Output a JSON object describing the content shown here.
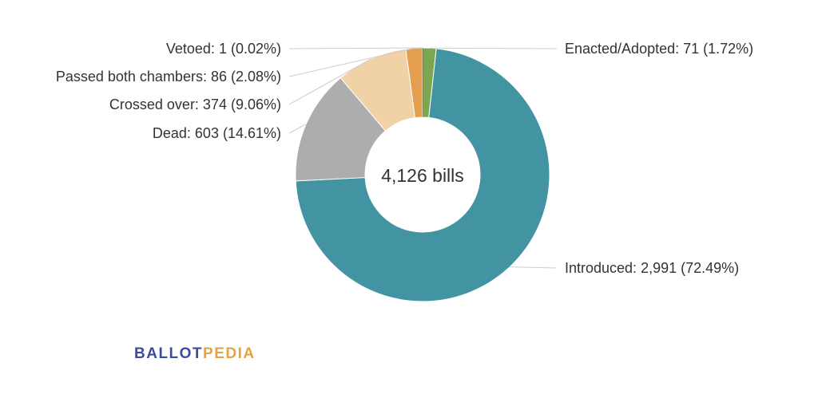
{
  "chart_data": {
    "type": "pie",
    "center_label": "4,126 bills",
    "slices": [
      {
        "name": "Enacted/Adopted",
        "value": 71,
        "percent": 1.72,
        "label": "Enacted/Adopted: 71 (1.72%)",
        "color": "#7aa74f"
      },
      {
        "name": "Introduced",
        "value": 2991,
        "percent": 72.49,
        "label": "Introduced: 2,991 (72.49%)",
        "color": "#4394a3"
      },
      {
        "name": "Dead",
        "value": 603,
        "percent": 14.61,
        "label": "Dead: 603 (14.61%)",
        "color": "#adadad"
      },
      {
        "name": "Crossed over",
        "value": 374,
        "percent": 9.06,
        "label": "Crossed over: 374 (9.06%)",
        "color": "#f0d2a6"
      },
      {
        "name": "Passed both chambers",
        "value": 86,
        "percent": 2.08,
        "label": "Passed both chambers: 86 (2.08%)",
        "color": "#e39f4e"
      },
      {
        "name": "Vetoed",
        "value": 1,
        "percent": 0.02,
        "label": "Vetoed: 1 (0.02%)",
        "color": "#b5573a"
      }
    ]
  },
  "brand": {
    "part1": "BALLOT",
    "part2": "PEDIA",
    "color1": "#3b4d9c",
    "color2": "#e4a446"
  }
}
